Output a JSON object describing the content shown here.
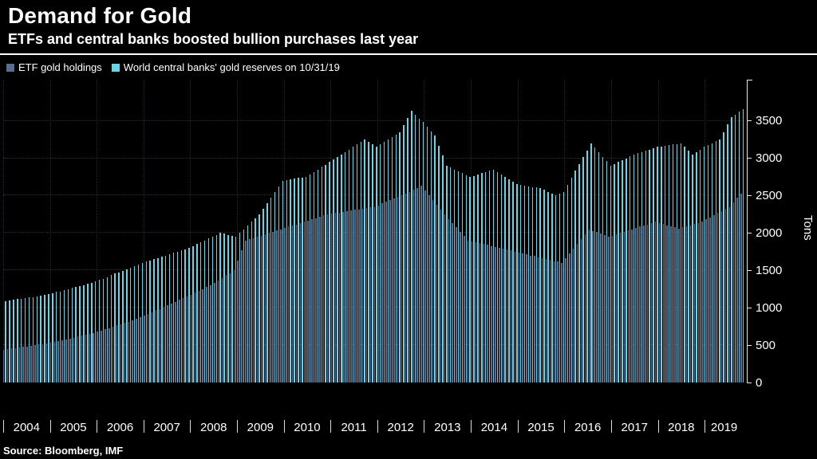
{
  "header": {
    "title": "Demand for Gold",
    "subtitle": "ETFs and central banks boosted bullion purchases last year"
  },
  "legend": [
    {
      "label": "ETF gold holdings",
      "color": "#5a6c8f"
    },
    {
      "label": "World central banks' gold reserves on 10/31/19",
      "color": "#6bd3e4"
    }
  ],
  "axis": {
    "y_label": "Tons",
    "y_ticks": [
      0,
      500,
      1000,
      1500,
      2000,
      2500,
      3000,
      3500
    ],
    "x_labels": [
      "2004",
      "2005",
      "2006",
      "2007",
      "2008",
      "2009",
      "2010",
      "2011",
      "2012",
      "2013",
      "2014",
      "2015",
      "2016",
      "2017",
      "2018",
      "2019"
    ]
  },
  "source": "Source: Bloomberg, IMF",
  "colors": {
    "background": "#000000",
    "text": "#ffffff",
    "axis": "#e8e8e8",
    "etf_bars": "#5a6c8f",
    "central_bank_bars": "#6bd3e4"
  },
  "chart_data": {
    "type": "bar",
    "title": "Demand for Gold",
    "subtitle": "ETFs and central banks boosted bullion purchases last year",
    "x_unit": "month",
    "x_start": "2004-01",
    "x_end": "2019-10",
    "months_per_year": 12,
    "ylabel": "Tons",
    "ylim": [
      0,
      4050
    ],
    "grid": true,
    "legend_position": "top-left",
    "series": [
      {
        "name": "ETF gold holdings",
        "slug": "etf-gold-holdings",
        "color": "#5a6c8f",
        "values": [
          440,
          450,
          460,
          460,
          470,
          480,
          480,
          490,
          500,
          510,
          510,
          520,
          530,
          545,
          555,
          565,
          580,
          590,
          600,
          615,
          625,
          635,
          650,
          660,
          680,
          695,
          710,
          730,
          750,
          765,
          780,
          800,
          815,
          835,
          850,
          870,
          895,
          915,
          940,
          965,
          985,
          1010,
          1035,
          1055,
          1080,
          1105,
          1125,
          1150,
          1175,
          1200,
          1225,
          1250,
          1275,
          1300,
          1335,
          1365,
          1400,
          1435,
          1465,
          1500,
          1635,
          1765,
          1900,
          1915,
          1930,
          1950,
          1965,
          1985,
          2000,
          2015,
          2035,
          2050,
          2065,
          2085,
          2100,
          2115,
          2135,
          2150,
          2165,
          2185,
          2200,
          2215,
          2235,
          2250,
          2260,
          2265,
          2275,
          2285,
          2290,
          2300,
          2310,
          2315,
          2325,
          2335,
          2340,
          2350,
          2370,
          2395,
          2415,
          2440,
          2460,
          2485,
          2505,
          2530,
          2550,
          2575,
          2605,
          2630,
          2565,
          2505,
          2440,
          2375,
          2315,
          2250,
          2190,
          2135,
          2075,
          2015,
          1960,
          1900,
          1890,
          1875,
          1865,
          1850,
          1840,
          1825,
          1815,
          1800,
          1790,
          1775,
          1765,
          1750,
          1740,
          1725,
          1715,
          1700,
          1690,
          1675,
          1665,
          1650,
          1640,
          1625,
          1615,
          1600,
          1665,
          1730,
          1795,
          1855,
          1920,
          1985,
          2050,
          2030,
          2010,
          1990,
          1970,
          1950,
          1965,
          1985,
          2000,
          2015,
          2035,
          2050,
          2065,
          2085,
          2100,
          2115,
          2135,
          2150,
          2135,
          2120,
          2105,
          2090,
          2075,
          2060,
          2075,
          2090,
          2105,
          2120,
          2135,
          2150,
          2180,
          2210,
          2235,
          2265,
          2295,
          2320,
          2350,
          2410,
          2470,
          2530
        ]
      },
      {
        "name": "World central banks' gold reserves on 10/31/19",
        "slug": "central-bank-gold-reserves",
        "color": "#6bd3e4",
        "values": [
          1090,
          1100,
          1105,
          1115,
          1120,
          1130,
          1140,
          1145,
          1155,
          1160,
          1170,
          1180,
          1195,
          1210,
          1220,
          1235,
          1250,
          1265,
          1280,
          1290,
          1305,
          1320,
          1335,
          1350,
          1370,
          1390,
          1410,
          1435,
          1455,
          1475,
          1495,
          1515,
          1540,
          1560,
          1580,
          1600,
          1615,
          1635,
          1650,
          1665,
          1685,
          1700,
          1715,
          1735,
          1750,
          1765,
          1785,
          1800,
          1825,
          1850,
          1875,
          1900,
          1925,
          1950,
          1975,
          2000,
          1990,
          1975,
          1965,
          1950,
          2000,
          2050,
          2100,
          2150,
          2200,
          2250,
          2325,
          2400,
          2475,
          2550,
          2625,
          2700,
          2710,
          2715,
          2725,
          2735,
          2740,
          2750,
          2785,
          2815,
          2850,
          2885,
          2915,
          2950,
          2985,
          3015,
          3050,
          3085,
          3115,
          3150,
          3185,
          3215,
          3250,
          3215,
          3185,
          3150,
          3185,
          3215,
          3250,
          3285,
          3315,
          3350,
          3445,
          3535,
          3630,
          3580,
          3530,
          3480,
          3420,
          3360,
          3300,
          3165,
          3035,
          2900,
          2875,
          2850,
          2825,
          2800,
          2775,
          2750,
          2765,
          2785,
          2800,
          2815,
          2835,
          2850,
          2815,
          2785,
          2750,
          2715,
          2685,
          2650,
          2640,
          2635,
          2625,
          2615,
          2610,
          2600,
          2575,
          2550,
          2525,
          2500,
          2525,
          2550,
          2645,
          2735,
          2830,
          2920,
          3015,
          3105,
          3200,
          3140,
          3080,
          3020,
          2960,
          2900,
          2925,
          2950,
          2975,
          3000,
          3025,
          3050,
          3065,
          3085,
          3100,
          3115,
          3135,
          3150,
          3160,
          3170,
          3175,
          3185,
          3190,
          3200,
          3150,
          3100,
          3050,
          3085,
          3115,
          3150,
          3175,
          3200,
          3225,
          3250,
          3350,
          3450,
          3550,
          3585,
          3625,
          3660
        ]
      }
    ]
  }
}
